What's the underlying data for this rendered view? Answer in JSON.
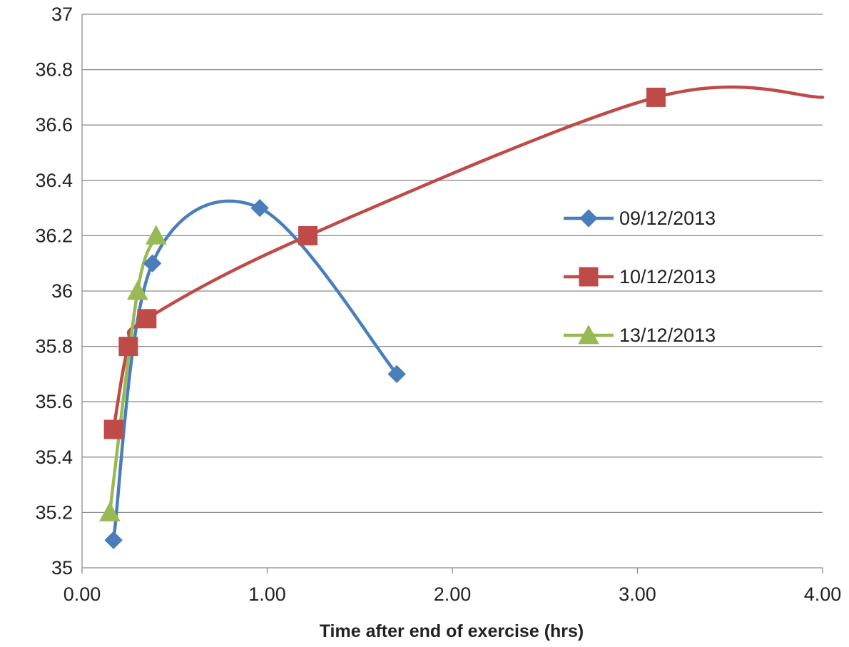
{
  "chart_data": {
    "type": "line",
    "title": "",
    "xlabel": "Time after end of exercise  (hrs)",
    "ylabel": "",
    "xlim": [
      0,
      4
    ],
    "ylim": [
      35,
      37
    ],
    "x_ticks": [
      0,
      1,
      2,
      3,
      4
    ],
    "x_tick_labels": [
      "0.00",
      "1.00",
      "2.00",
      "3.00",
      "4.00"
    ],
    "y_ticks": [
      35,
      35.2,
      35.4,
      35.6,
      35.8,
      36,
      36.2,
      36.4,
      36.6,
      36.8,
      37
    ],
    "y_tick_labels": [
      "35",
      "35.2",
      "35.4",
      "35.6",
      "35.8",
      "36",
      "36.2",
      "36.4",
      "36.6",
      "36.8",
      "37"
    ],
    "grid": true,
    "smooth": true,
    "legend_position": "right",
    "series": [
      {
        "name": "09/12/2013",
        "color": "#4a7ebb",
        "marker": "diamond",
        "x": [
          0.17,
          0.38,
          0.96,
          1.7
        ],
        "y": [
          35.1,
          36.1,
          36.3,
          35.7
        ]
      },
      {
        "name": "10/12/2013",
        "color": "#be4b48",
        "marker": "square",
        "x": [
          0.17,
          0.25,
          0.35,
          1.22,
          3.1,
          4.0
        ],
        "y": [
          35.5,
          35.8,
          35.9,
          36.2,
          36.7,
          36.7
        ]
      },
      {
        "name": "13/12/2013",
        "color": "#98b954",
        "marker": "triangle",
        "x": [
          0.15,
          0.3,
          0.4
        ],
        "y": [
          35.2,
          36.0,
          36.2
        ]
      }
    ],
    "marker_flags": [
      [
        true,
        true,
        true,
        true
      ],
      [
        true,
        true,
        true,
        true,
        true,
        false
      ],
      [
        true,
        true,
        true
      ]
    ]
  }
}
